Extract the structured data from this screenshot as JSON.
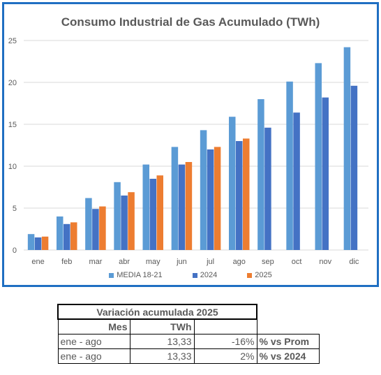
{
  "chart_data": {
    "type": "bar",
    "title": "Consumo Industrial de Gas Acumulado (TWh)",
    "categories": [
      "ene",
      "feb",
      "mar",
      "abr",
      "may",
      "jun",
      "jul",
      "ago",
      "sep",
      "oct",
      "nov",
      "dic"
    ],
    "ylim": [
      0,
      25
    ],
    "yticks": [
      0,
      5,
      10,
      15,
      20,
      25
    ],
    "grid": true,
    "legend_position": "bottom",
    "series": [
      {
        "name": "MEDIA 18-21",
        "color": "#5b9bd5",
        "values": [
          1.9,
          4.0,
          6.2,
          8.1,
          10.2,
          12.3,
          14.3,
          15.9,
          18.0,
          20.1,
          22.3,
          24.2
        ]
      },
      {
        "name": "2024",
        "color": "#4472c4",
        "values": [
          1.5,
          3.1,
          4.9,
          6.5,
          8.5,
          10.2,
          12.0,
          13.0,
          14.6,
          16.4,
          18.2,
          19.6
        ]
      },
      {
        "name": "2025",
        "color": "#ed7d31",
        "values": [
          1.6,
          3.3,
          5.2,
          6.9,
          8.9,
          10.5,
          12.3,
          13.3,
          null,
          null,
          null,
          null
        ]
      }
    ]
  },
  "table": {
    "caption": "Variación acumulada 2025",
    "headers": {
      "mes": "Mes",
      "twh": "TWh"
    },
    "rows": [
      {
        "period": "ene - ago",
        "twh": "13,33",
        "pct": "-16%",
        "label": "% vs Prom"
      },
      {
        "period": "ene - ago",
        "twh": "13,33",
        "pct": "2%",
        "label": "% vs 2024"
      }
    ]
  }
}
